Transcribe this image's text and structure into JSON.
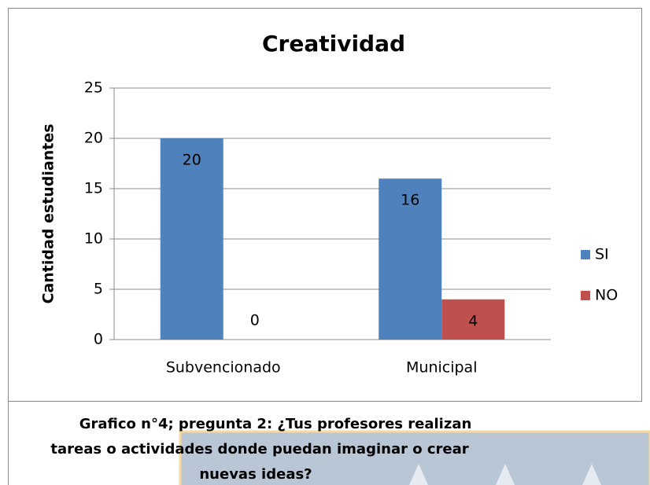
{
  "chart_data": {
    "type": "bar",
    "title": "Creatividad",
    "y_label": "Cantidad estudiantes",
    "categories": [
      "Subvencionado",
      "Municipal"
    ],
    "series": [
      {
        "name": "SI",
        "color": "#4f81bd",
        "values": [
          20,
          16
        ]
      },
      {
        "name": "NO",
        "color": "#c0504d",
        "values": [
          0,
          4
        ]
      }
    ],
    "ylim": [
      0,
      25
    ],
    "yticks": [
      0,
      5,
      10,
      15,
      20,
      25
    ],
    "grid": true,
    "legend": "right"
  },
  "caption": [
    "Grafico n°4; pregunta 2: ¿Tus profesores realizan",
    "tareas o actividades donde puedan imaginar o crear",
    "nuevas ideas?"
  ]
}
